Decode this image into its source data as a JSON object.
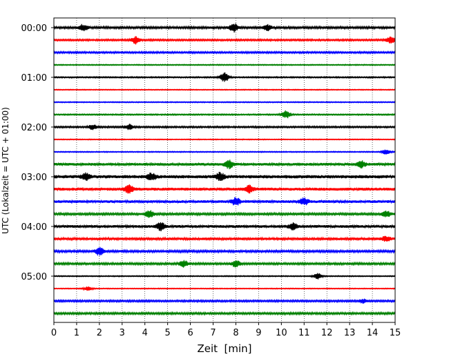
{
  "chart_data": {
    "type": "line",
    "title": "",
    "xlabel": "Zeit  [min]",
    "ylabel": "UTC (Lokalzeit = UTC + 01:00)",
    "xlim": [
      0,
      15
    ],
    "x_ticks": [
      "0",
      "1",
      "2",
      "3",
      "4",
      "5",
      "6",
      "7",
      "8",
      "9",
      "10",
      "11",
      "12",
      "13",
      "14",
      "15"
    ],
    "y_tick_labels": [
      "00:00",
      "01:00",
      "02:00",
      "03:00",
      "04:00",
      "05:00"
    ],
    "grid": "vertical dotted lines at each minute",
    "legend": "none",
    "colors": [
      "#000000",
      "#ff0000",
      "#0000ff",
      "#008000"
    ],
    "series": [
      {
        "start": "00:00",
        "amplitude": 0.18,
        "bursts": [
          [
            1.3,
            0.5
          ],
          [
            7.9,
            0.7
          ],
          [
            9.4,
            0.4
          ]
        ]
      },
      {
        "start": "00:15",
        "amplitude": 0.14,
        "bursts": [
          [
            3.6,
            0.6
          ],
          [
            14.8,
            0.5
          ]
        ]
      },
      {
        "start": "00:30",
        "amplitude": 0.14,
        "bursts": []
      },
      {
        "start": "00:45",
        "amplitude": 0.08,
        "bursts": []
      },
      {
        "start": "01:00",
        "amplitude": 0.1,
        "bursts": [
          [
            7.5,
            0.8
          ]
        ]
      },
      {
        "start": "01:15",
        "amplitude": 0.07,
        "bursts": []
      },
      {
        "start": "01:30",
        "amplitude": 0.08,
        "bursts": []
      },
      {
        "start": "01:45",
        "amplitude": 0.1,
        "bursts": [
          [
            10.2,
            0.6
          ]
        ]
      },
      {
        "start": "02:00",
        "amplitude": 0.13,
        "bursts": [
          [
            1.7,
            0.4
          ],
          [
            3.3,
            0.4
          ]
        ]
      },
      {
        "start": "02:15",
        "amplitude": 0.07,
        "bursts": []
      },
      {
        "start": "02:30",
        "amplitude": 0.08,
        "bursts": [
          [
            14.6,
            0.4
          ]
        ]
      },
      {
        "start": "02:45",
        "amplitude": 0.22,
        "bursts": [
          [
            7.7,
            0.6
          ],
          [
            13.5,
            0.5
          ]
        ]
      },
      {
        "start": "03:00",
        "amplitude": 0.26,
        "bursts": [
          [
            1.4,
            0.5
          ],
          [
            4.3,
            0.5
          ],
          [
            7.3,
            0.6
          ]
        ]
      },
      {
        "start": "03:15",
        "amplitude": 0.24,
        "bursts": [
          [
            3.3,
            0.6
          ],
          [
            8.6,
            0.5
          ]
        ]
      },
      {
        "start": "03:30",
        "amplitude": 0.22,
        "bursts": [
          [
            8.0,
            0.6
          ],
          [
            11.0,
            0.5
          ]
        ]
      },
      {
        "start": "03:45",
        "amplitude": 0.18,
        "bursts": [
          [
            4.2,
            0.5
          ],
          [
            14.6,
            0.5
          ]
        ]
      },
      {
        "start": "04:00",
        "amplitude": 0.22,
        "bursts": [
          [
            4.7,
            0.6
          ],
          [
            10.5,
            0.5
          ]
        ]
      },
      {
        "start": "04:15",
        "amplitude": 0.2,
        "bursts": [
          [
            14.6,
            0.4
          ]
        ]
      },
      {
        "start": "04:30",
        "amplitude": 0.18,
        "bursts": [
          [
            2.0,
            0.6
          ]
        ]
      },
      {
        "start": "04:45",
        "amplitude": 0.16,
        "bursts": [
          [
            5.7,
            0.5
          ],
          [
            8.0,
            0.5
          ]
        ]
      },
      {
        "start": "05:00",
        "amplitude": 0.08,
        "bursts": [
          [
            11.6,
            0.5
          ]
        ]
      },
      {
        "start": "05:15",
        "amplitude": 0.07,
        "bursts": [
          [
            1.5,
            0.3
          ]
        ]
      },
      {
        "start": "05:30",
        "amplitude": 0.15,
        "bursts": [
          [
            13.6,
            0.3
          ]
        ]
      },
      {
        "start": "05:45",
        "amplitude": 0.16,
        "bursts": []
      }
    ]
  }
}
